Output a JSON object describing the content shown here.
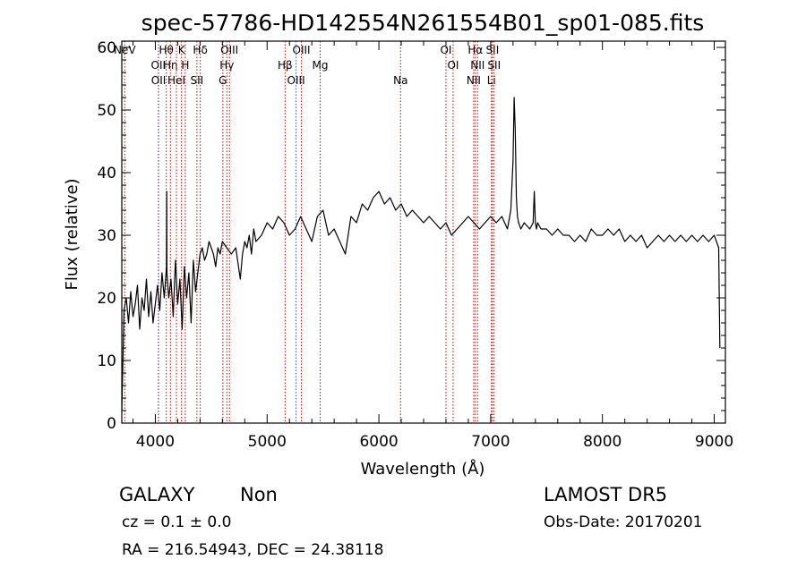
{
  "chart_data": {
    "type": "line",
    "title": "spec-57786-HD142554N261554B01_sp01-085.fits",
    "xlabel": "Wavelength (Å)",
    "ylabel": "Flux (relative)",
    "xlim": [
      3700,
      9100
    ],
    "ylim": [
      0,
      61
    ],
    "xticks": [
      4000,
      5000,
      6000,
      7000,
      8000,
      9000
    ],
    "yticks": [
      0,
      10,
      20,
      30,
      40,
      50,
      60
    ],
    "series": [
      {
        "x": [
          3700,
          3720,
          3740,
          3760,
          3780,
          3800,
          3820,
          3840,
          3860,
          3880,
          3900,
          3920,
          3940,
          3960,
          3980,
          4000,
          4020,
          4040,
          4060,
          4080,
          4100,
          4102,
          4104,
          4120,
          4140,
          4160,
          4180,
          4200,
          4220,
          4240,
          4260,
          4280,
          4300,
          4320,
          4340,
          4360,
          4380,
          4400,
          4420,
          4440,
          4460,
          4480,
          4500,
          4520,
          4540,
          4560,
          4580,
          4600,
          4640,
          4680,
          4720,
          4760,
          4780,
          4800,
          4820,
          4840,
          4860,
          4880,
          4900,
          4950,
          5000,
          5050,
          5100,
          5150,
          5200,
          5250,
          5300,
          5350,
          5400,
          5450,
          5500,
          5550,
          5600,
          5650,
          5700,
          5750,
          5800,
          5850,
          5900,
          5950,
          6000,
          6050,
          6100,
          6150,
          6200,
          6250,
          6300,
          6350,
          6400,
          6450,
          6500,
          6550,
          6600,
          6650,
          6700,
          6750,
          6800,
          6850,
          6900,
          6950,
          7000,
          7050,
          7100,
          7150,
          7180,
          7200,
          7210,
          7220,
          7230,
          7240,
          7250,
          7270,
          7300,
          7350,
          7380,
          7390,
          7400,
          7410,
          7420,
          7450,
          7500,
          7550,
          7600,
          7650,
          7700,
          7750,
          7800,
          7850,
          7900,
          7950,
          8000,
          8050,
          8100,
          8150,
          8200,
          8250,
          8300,
          8350,
          8400,
          8450,
          8500,
          8550,
          8600,
          8650,
          8700,
          8750,
          8800,
          8850,
          8900,
          8950,
          9000,
          9020,
          9040,
          9050
        ],
        "y": [
          2,
          18,
          20,
          16,
          21,
          17,
          19,
          22,
          15,
          20,
          18,
          23,
          17,
          21,
          16,
          19,
          22,
          18,
          24,
          20,
          25,
          37,
          24,
          20,
          23,
          17,
          26,
          19,
          23,
          15,
          25,
          20,
          24,
          16,
          26,
          21,
          24,
          27,
          28,
          26,
          27,
          29,
          28,
          27,
          25,
          28,
          27,
          29,
          28,
          27,
          28,
          23,
          27,
          29,
          28,
          30,
          27,
          31,
          29,
          30,
          32,
          31,
          33,
          32,
          30,
          31,
          33,
          31,
          29,
          33,
          34,
          30,
          31,
          29,
          27,
          33,
          32,
          35,
          34,
          36,
          37,
          35,
          36,
          34,
          35,
          33,
          34,
          33,
          32,
          33,
          32,
          31,
          32,
          30,
          31,
          32,
          33,
          32,
          31,
          32,
          33,
          32,
          33,
          31,
          34,
          42,
          52,
          47,
          36,
          33,
          32,
          31,
          32,
          31,
          32,
          37,
          32,
          31,
          32,
          31,
          31,
          30,
          31,
          30,
          30,
          29,
          30,
          29,
          31,
          30,
          30,
          31,
          30,
          31,
          29,
          30,
          29,
          30,
          28,
          29,
          30,
          29,
          30,
          29,
          30,
          29,
          30,
          29,
          30,
          29,
          30,
          29,
          28,
          12
        ]
      }
    ],
    "line_markers": [
      {
        "label": "NeV",
        "x": 3426,
        "color": "#cc0000"
      },
      {
        "label": "OII",
        "x": 3727,
        "color": "#cc0000"
      },
      {
        "label": "OII",
        "x": 3729,
        "color": "#3355cc"
      },
      {
        "label": "Hθ",
        "x": 3798,
        "color": "#cc0000"
      },
      {
        "label": "Hη",
        "x": 3835,
        "color": "#cc0000"
      },
      {
        "label": "HeI",
        "x": 3889,
        "color": "#cc0000"
      },
      {
        "label": "K",
        "x": 3934,
        "color": "#cc0000"
      },
      {
        "label": "H",
        "x": 3968,
        "color": "#cc0000"
      },
      {
        "label": "SII",
        "x": 4072,
        "color": "#cc0000"
      },
      {
        "label": "Hδ",
        "x": 4102,
        "color": "#cc0000"
      },
      {
        "label": "Hγ",
        "x": 4340,
        "color": "#cc0000"
      },
      {
        "label": "G",
        "x": 4304,
        "color": "#cc0000"
      },
      {
        "label": "OIII",
        "x": 4363,
        "color": "#cc0000"
      },
      {
        "label": "Hβ",
        "x": 4861,
        "color": "#cc0000"
      },
      {
        "label": "OIII",
        "x": 4959,
        "color": "#3355cc"
      },
      {
        "label": "OIII",
        "x": 5007,
        "color": "#cc0000"
      },
      {
        "label": "Mg",
        "x": 5175,
        "color": "#cc0000"
      },
      {
        "label": "Na",
        "x": 5894,
        "color": "#cc0000"
      },
      {
        "label": "OI",
        "x": 6300,
        "color": "#cc0000"
      },
      {
        "label": "OI",
        "x": 6364,
        "color": "#cc0000"
      },
      {
        "label": "NII",
        "x": 6548,
        "color": "#cc0000"
      },
      {
        "label": "Hα",
        "x": 6563,
        "color": "#cc0000"
      },
      {
        "label": "NII",
        "x": 6583,
        "color": "#cc0000"
      },
      {
        "label": "Li",
        "x": 6707,
        "color": "#cc0000"
      },
      {
        "label": "SII",
        "x": 6716,
        "color": "#cc0000"
      },
      {
        "label": "SII",
        "x": 6731,
        "color": "#cc0000"
      }
    ]
  },
  "info": {
    "class_label": "GALAXY",
    "subclass_label": "Non",
    "survey_label": "LAMOST DR5",
    "cz_text": "cz = 0.1 ± 0.0",
    "obs_date_text": "Obs-Date: 20170201",
    "coords_text": "RA = 216.54943, DEC =  24.38118"
  }
}
